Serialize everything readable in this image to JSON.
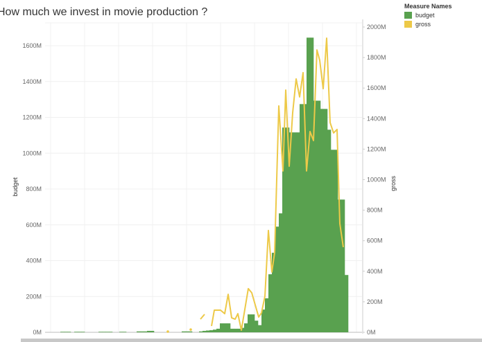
{
  "chart_data": {
    "type": "bar+line",
    "title": "How much we invest in movie production ?",
    "left_axis": {
      "label": "budget",
      "ticks": [
        "0M",
        "200M",
        "400M",
        "600M",
        "800M",
        "1000M",
        "1200M",
        "1400M",
        "1600M"
      ],
      "range": [
        0,
        1600
      ]
    },
    "right_axis": {
      "label": "gross",
      "ticks": [
        "0M",
        "200M",
        "400M",
        "600M",
        "800M",
        "1000M",
        "1200M",
        "1400M",
        "1600M",
        "1800M",
        "2000M"
      ],
      "range": [
        0,
        2000
      ]
    },
    "grid": true,
    "legend": {
      "title": "Measure Names",
      "placement": "top-right",
      "entries": [
        {
          "name": "budget",
          "color": "#59a14f"
        },
        {
          "name": "gross",
          "color": "#edc948"
        }
      ]
    },
    "series": [
      {
        "name": "budget",
        "kind": "bar",
        "values": [
          0,
          0,
          0,
          3,
          3,
          3,
          0,
          3,
          3,
          3,
          0,
          0,
          0,
          0,
          3,
          3,
          3,
          3,
          0,
          0,
          3,
          3,
          0,
          0,
          0,
          5,
          5,
          5,
          8,
          8,
          0,
          0,
          0,
          0,
          0,
          0,
          0,
          0,
          5,
          5,
          5,
          0,
          0,
          5,
          8,
          10,
          12,
          15,
          20,
          50,
          50,
          50,
          20,
          20,
          20,
          25,
          50,
          100,
          100,
          65,
          40,
          127,
          190,
          324,
          444,
          590,
          664,
          1143,
          1143,
          1116,
          1116,
          1116,
          1274,
          1274,
          1645,
          1645,
          1293,
          1293,
          1247,
          1247,
          1131,
          1019,
          1019,
          741,
          741,
          320
        ]
      },
      {
        "name": "gross",
        "kind": "line",
        "segments": [
          [
            [
              33.5,
              5
            ]
          ],
          [
            [
              40.1,
              18
            ]
          ],
          [
            [
              42.9,
              86
            ],
            [
              44.1,
              118
            ]
          ],
          [
            [
              46.1,
              41
            ],
            [
              46.9,
              145
            ],
            [
              48.7,
              145
            ],
            [
              49.9,
              122
            ],
            [
              50.9,
              249
            ],
            [
              51.9,
              95
            ],
            [
              52.9,
              86
            ],
            [
              53.7,
              122
            ],
            [
              54.7,
              14
            ],
            [
              56.7,
              286
            ],
            [
              57.7,
              259
            ],
            [
              59.7,
              100
            ],
            [
              60.5,
              127
            ],
            [
              61.5,
              236
            ],
            [
              62.5,
              667
            ],
            [
              63.5,
              395
            ],
            [
              64.3,
              522
            ],
            [
              65.5,
              1483
            ],
            [
              66.7,
              1057
            ],
            [
              67.5,
              1587
            ],
            [
              68.5,
              1088
            ],
            [
              69.5,
              1438
            ],
            [
              70.5,
              1660
            ],
            [
              71.5,
              1542
            ],
            [
              72.5,
              1701
            ],
            [
              73.5,
              1057
            ],
            [
              74.5,
              1315
            ],
            [
              75.5,
              1256
            ],
            [
              76.5,
              1850
            ],
            [
              77.3,
              1782
            ],
            [
              78.3,
              1596
            ],
            [
              79.3,
              1927
            ],
            [
              80.3,
              1374
            ],
            [
              81.3,
              1306
            ],
            [
              82.3,
              1329
            ],
            [
              83.1,
              712
            ],
            [
              84.1,
              558
            ]
          ]
        ]
      }
    ]
  }
}
